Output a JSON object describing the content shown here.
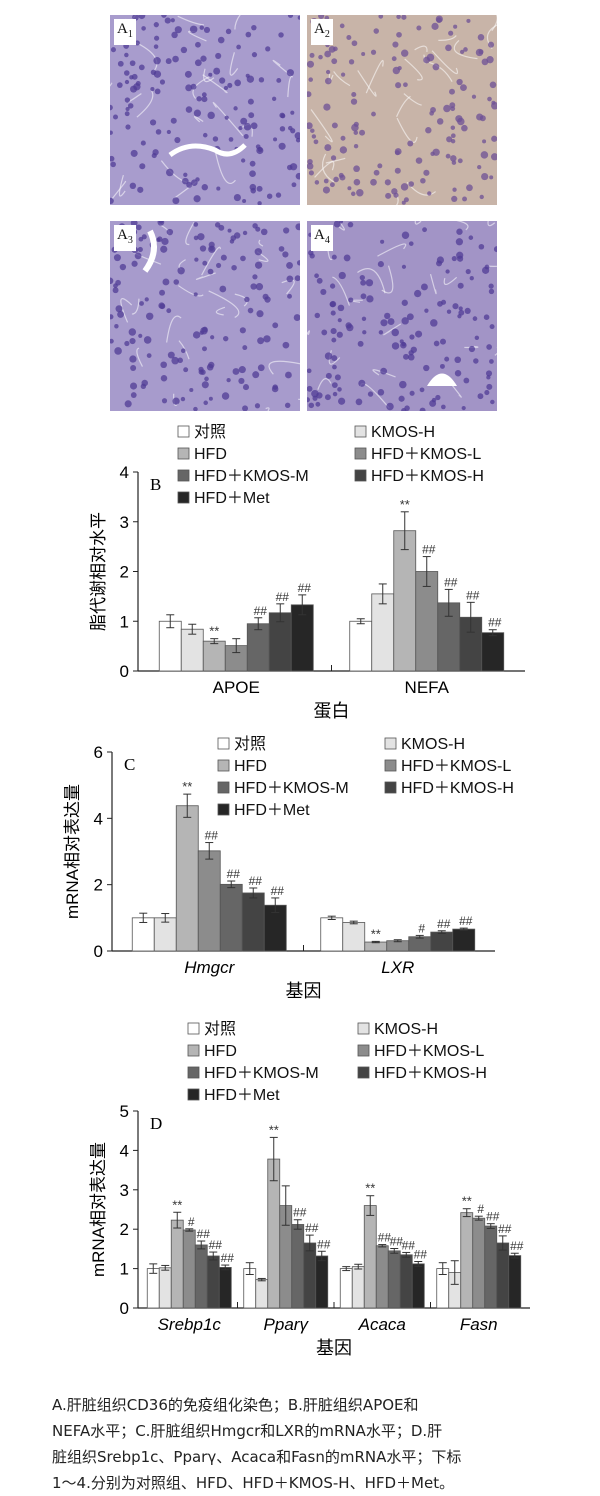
{
  "images": [
    {
      "label": "A",
      "sub": "1",
      "color": "#a89ccd"
    },
    {
      "label": "A",
      "sub": "2",
      "color": "#c8b4a8"
    },
    {
      "label": "A",
      "sub": "3",
      "color": "#a79bcc"
    },
    {
      "label": "A",
      "sub": "4",
      "color": "#a294c6"
    }
  ],
  "colors": [
    "#ffffff",
    "#e3e3e3",
    "#b5b5b5",
    "#8c8c8c",
    "#666666",
    "#444444",
    "#262626"
  ],
  "legend_labels": [
    "对照",
    "KMOS-H",
    "HFD",
    "HFD＋KMOS-L",
    "HFD＋KMOS-M",
    "HFD＋KMOS-H",
    "HFD＋Met"
  ],
  "chart_data": [
    {
      "type": "bar",
      "panel_label": "B",
      "categories": [
        "APOE",
        "NEFA"
      ],
      "ylabel": "脂代谢相对水平",
      "xlabel": "蛋白",
      "ylim": [
        0,
        4
      ],
      "yticks": [
        "0",
        "1",
        "2",
        "3",
        "4"
      ],
      "series_values": [
        [
          1.0,
          1.0
        ],
        [
          0.84,
          1.55
        ],
        [
          0.6,
          2.82
        ],
        [
          0.51,
          2.0
        ],
        [
          0.95,
          1.37
        ],
        [
          1.17,
          1.08
        ],
        [
          1.33,
          0.77
        ]
      ],
      "errors": [
        [
          0.13,
          0.05
        ],
        [
          0.1,
          0.2
        ],
        [
          0.05,
          0.38
        ],
        [
          0.14,
          0.3
        ],
        [
          0.12,
          0.27
        ],
        [
          0.18,
          0.3
        ],
        [
          0.2,
          0.06
        ]
      ],
      "marks": [
        [
          "",
          ""
        ],
        [
          "",
          ""
        ],
        [
          "**",
          "**"
        ],
        [
          "",
          "##"
        ],
        [
          "##",
          "##"
        ],
        [
          "##",
          "##"
        ],
        [
          "##",
          "##"
        ]
      ],
      "italic_categories": false
    },
    {
      "type": "bar",
      "panel_label": "C",
      "categories": [
        "Hmgcr",
        "LXR"
      ],
      "ylabel": "mRNA相对表达量",
      "xlabel": "基因",
      "ylim": [
        0,
        6
      ],
      "yticks": [
        "0",
        "2",
        "4",
        "6"
      ],
      "series_values": [
        [
          1.0,
          1.0
        ],
        [
          1.0,
          0.86
        ],
        [
          4.38,
          0.27
        ],
        [
          3.02,
          0.31
        ],
        [
          2.01,
          0.43
        ],
        [
          1.75,
          0.57
        ],
        [
          1.38,
          0.66
        ]
      ],
      "errors": [
        [
          0.14,
          0.05
        ],
        [
          0.13,
          0.04
        ],
        [
          0.35,
          0.02
        ],
        [
          0.25,
          0.03
        ],
        [
          0.1,
          0.04
        ],
        [
          0.15,
          0.04
        ],
        [
          0.22,
          0.03
        ]
      ],
      "marks": [
        [
          "",
          ""
        ],
        [
          "",
          ""
        ],
        [
          "**",
          "**"
        ],
        [
          "##",
          ""
        ],
        [
          "##",
          "#"
        ],
        [
          "##",
          "##"
        ],
        [
          "##",
          "##"
        ]
      ],
      "italic_categories": true
    },
    {
      "type": "bar",
      "panel_label": "D",
      "categories": [
        "Srebp1c",
        "Pparγ",
        "Acaca",
        "Fasn"
      ],
      "ylabel": "mRNA相对表达量",
      "xlabel": "基因",
      "ylim": [
        0,
        5
      ],
      "yticks": [
        "0",
        "1",
        "2",
        "3",
        "4",
        "5"
      ],
      "series_values": [
        [
          1.0,
          1.0,
          1.0,
          1.0
        ],
        [
          1.02,
          0.72,
          1.05,
          0.9
        ],
        [
          2.23,
          3.78,
          2.6,
          2.42
        ],
        [
          1.98,
          2.6,
          1.58,
          2.28
        ],
        [
          1.6,
          2.12,
          1.45,
          2.08
        ],
        [
          1.32,
          1.65,
          1.35,
          1.65
        ],
        [
          1.03,
          1.32,
          1.12,
          1.33
        ]
      ],
      "errors": [
        [
          0.12,
          0.15,
          0.05,
          0.15
        ],
        [
          0.06,
          0.03,
          0.06,
          0.3
        ],
        [
          0.2,
          0.55,
          0.25,
          0.1
        ],
        [
          0.03,
          0.5,
          0.03,
          0.05
        ],
        [
          0.1,
          0.12,
          0.06,
          0.06
        ],
        [
          0.1,
          0.2,
          0.06,
          0.18
        ],
        [
          0.06,
          0.12,
          0.06,
          0.06
        ]
      ],
      "marks": [
        [
          "",
          "",
          "",
          ""
        ],
        [
          "",
          "",
          "",
          ""
        ],
        [
          "**",
          "**",
          "**",
          "**"
        ],
        [
          "#",
          "",
          "##",
          "#"
        ],
        [
          "##",
          "##",
          "##",
          "##"
        ],
        [
          "##",
          "##",
          "##",
          "##"
        ],
        [
          "##",
          "##",
          "##",
          "##"
        ]
      ],
      "italic_categories": true
    }
  ],
  "caption_lines": [
    "A.肝脏组织CD36的免疫组化染色；B.肝脏组织APOE和",
    "NEFA水平；C.肝脏组织Hmgcr和LXR的mRNA水平；D.肝",
    "脏组织Srebp1c、Pparγ、Acaca和Fasn的mRNA水平；下标",
    "1～4.分别为对照组、HFD、HFD＋KMOS-H、HFD＋Met。"
  ]
}
